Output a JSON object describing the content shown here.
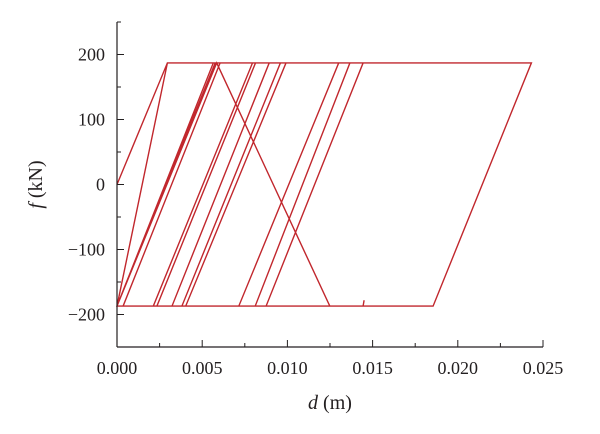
{
  "chart_data": {
    "type": "line",
    "xlabel": {
      "var": "d",
      "unit": " (m)"
    },
    "ylabel": {
      "var": "f",
      "unit": " (kN)"
    },
    "xlim": [
      0,
      0.025
    ],
    "ylim": [
      -250,
      250
    ],
    "x_ticks": [
      {
        "value": 0.0,
        "label": "0.000"
      },
      {
        "value": 0.005,
        "label": "0.005"
      },
      {
        "value": 0.01,
        "label": "0.010"
      },
      {
        "value": 0.015,
        "label": "0.015"
      },
      {
        "value": 0.02,
        "label": "0.020"
      },
      {
        "value": 0.025,
        "label": "0.025"
      }
    ],
    "y_ticks": [
      {
        "value": 200,
        "label": "200"
      },
      {
        "value": 100,
        "label": "100"
      },
      {
        "value": 0,
        "label": "0"
      },
      {
        "value": -100,
        "label": "−100"
      },
      {
        "value": -200,
        "label": "−200"
      }
    ],
    "grid": false,
    "line_color": "#c1272d",
    "axis_color": "#231f20",
    "series": [
      {
        "x": [
          0.0,
          0.00296,
          0.02432,
          0.01855,
          0.0,
          0.00296,
          0.01444,
          0.00875,
          0.00234,
          0.00813,
          0.01367,
          0.00811,
          0.00213,
          0.00795,
          0.01301,
          0.00715,
          0.00036,
          0.00605,
          0.00992,
          0.00403,
          0.0,
          0.00578,
          0.00959,
          0.00381,
          0.0,
          0.00576,
          0.00893,
          0.00323,
          0.0,
          0.00565,
          0.00813,
          0.00234,
          0.0,
          0.00585,
          0.01249,
          0.01444,
          0.0145
        ],
        "y": [
          0,
          187,
          187,
          -187,
          -187,
          187,
          187,
          -187,
          -187,
          187,
          187,
          -187,
          -187,
          187,
          187,
          -187,
          -187,
          187,
          187,
          -187,
          -187,
          187,
          187,
          -187,
          -187,
          187,
          187,
          -187,
          -187,
          187,
          187,
          -187,
          -187,
          187,
          -187,
          -187,
          -178
        ]
      }
    ]
  }
}
